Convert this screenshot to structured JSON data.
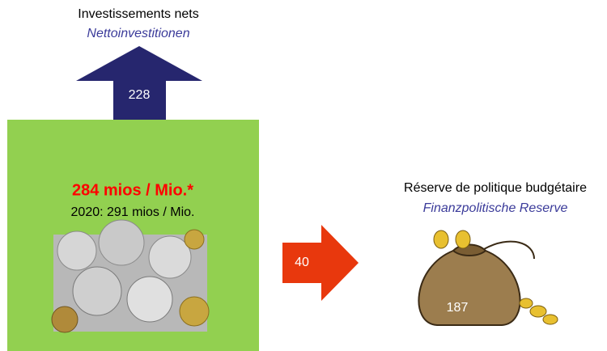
{
  "investments": {
    "label": "Investissements nets",
    "label_de": "Nettoinvestitionen",
    "value": 228
  },
  "total": {
    "headline": "284 mios / Mio.*",
    "previous": "2020: 291 mios / Mio."
  },
  "reserve": {
    "label": "Réserve de politique budgétaire",
    "label_de": "Finanzpolitische Reserve",
    "transfer": 40,
    "balance": 187
  }
}
